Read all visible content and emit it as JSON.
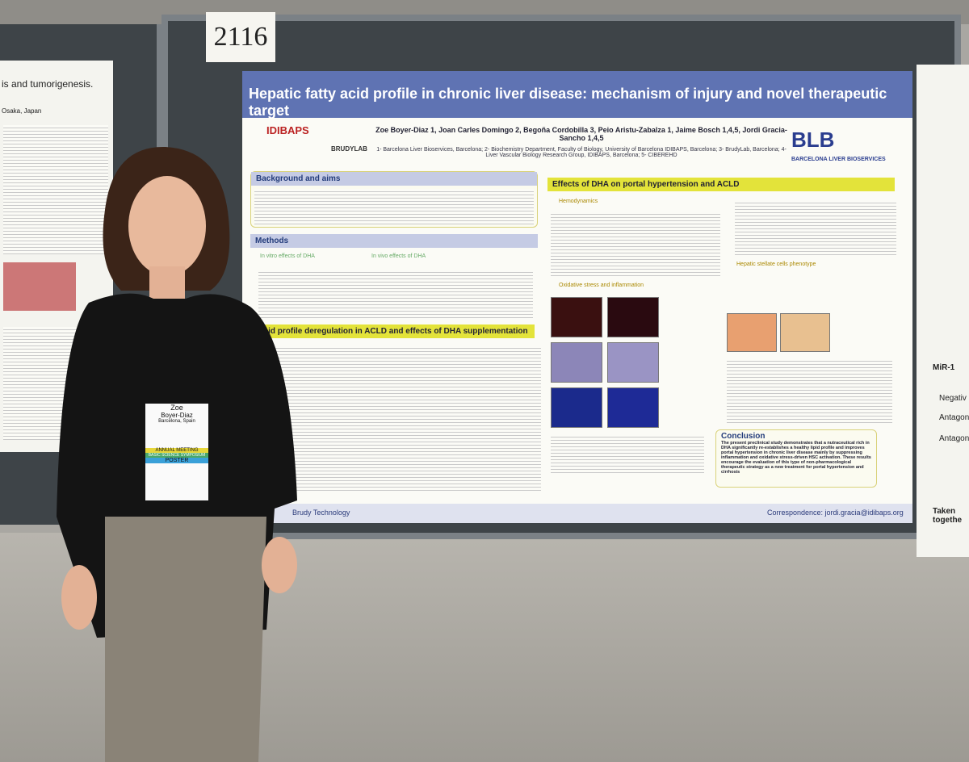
{
  "board_number": "2116",
  "poster": {
    "title": "Hepatic fatty acid profile in chronic liver disease: mechanism of injury and novel therapeutic target",
    "logos": [
      "IDIBAPS",
      "BRUDYLAB",
      "BLB",
      "BARCELONA LIVER BIOSERVICES"
    ],
    "authors": "Zoe Boyer-Diaz 1, Joan Carles Domingo 2, Begoña Cordobilla 3, Peio Aristu-Zabalza 1, Jaime Bosch 1,4,5, Jordi Gracia-Sancho 1,4,5",
    "affiliations": "1- Barcelona Liver Bioservices, Barcelona; 2- Biochemistry Department, Faculty of Biology, University of Barcelona IDIBAPS, Barcelona; 3- BrudyLab, Barcelona; 4- Liver Vascular Biology Research Group, IDIBAPS, Barcelona; 5- CIBEREHD",
    "sections": {
      "background": "Background and aims",
      "methods": "Methods",
      "in_vitro": "In vitro effects of DHA",
      "in_vivo": "In vivo effects of DHA",
      "profile": "tty acid profile deregulation in ACLD and effects of DHA supplementation",
      "effects": "Effects of DHA on portal hypertension and ACLD",
      "hemodynamics": "Hemodynamics",
      "oxidative": "Oxidative stress and inflammation",
      "hsc": "Hepatic stellate cells phenotype",
      "conclusion": "Conclusion"
    },
    "conclusion_text": "The present preclinical study demonstrates that a nutraceutical rich in DHA significantly re-establishes a healthy lipid profile and improves portal hypertension in chronic liver disease mainly by suppressing inflammation and oxidative stress-driven HSC activation. These results encourage the evaluation of this type of non-pharmacological therapeutic strategy as a new treatment for portal hypertension and cirrhosis",
    "footer_left": "Brudy Technology",
    "correspondence": "Correspondence: jordi.gracia@idibaps.org"
  },
  "left_poster": {
    "title": "is and tumorigenesis.",
    "location": "Osaka, Japan"
  },
  "right_poster": [
    "MiR-1",
    "Negativ",
    "Antagon",
    "Antagon",
    "Taken togethe"
  ],
  "badge": {
    "name": "Zoe",
    "surname": "Boyer-Diaz",
    "city": "Barcelona, Spain",
    "ribbons": [
      "ANNUAL MEETING",
      "BASIC SCIENCE SYMPOSIUM",
      "POSTER"
    ]
  }
}
